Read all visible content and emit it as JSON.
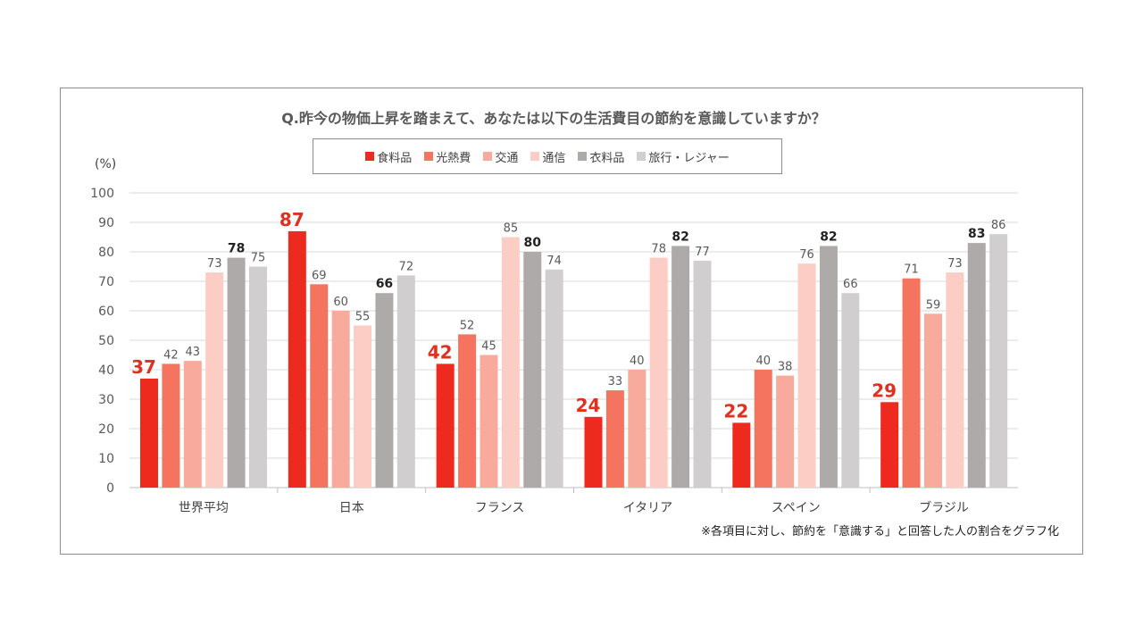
{
  "title": "Q.昨今の物価上昇を踏まえて、あなたは以下の生活費目の節約を意識していますか？",
  "unit": "(%)",
  "footnote": "※各項目に対し、節約を「意識する」と回答した人の割合をグラフ化",
  "chart_data": {
    "type": "bar",
    "title": "Q.昨今の物価上昇を踏まえて、あなたは以下の生活費目の節約を意識していますか？",
    "ylabel": "(%)",
    "ylim": [
      0,
      100
    ],
    "yticks": [
      0,
      10,
      20,
      30,
      40,
      50,
      60,
      70,
      80,
      90,
      100
    ],
    "grid": true,
    "legend_position": "top-center",
    "categories": [
      "世界平均",
      "日本",
      "フランス",
      "イタリア",
      "スペイン",
      "ブラジル"
    ],
    "series": [
      {
        "name": "食料品",
        "color": "#ee2a1e",
        "values": [
          37,
          87,
          42,
          24,
          22,
          29
        ]
      },
      {
        "name": "光熱費",
        "color": "#f5745f",
        "values": [
          42,
          69,
          52,
          33,
          40,
          71
        ]
      },
      {
        "name": "交通",
        "color": "#f8aa9c",
        "values": [
          43,
          60,
          45,
          40,
          38,
          59
        ]
      },
      {
        "name": "通信",
        "color": "#fbcdc5",
        "values": [
          73,
          55,
          85,
          78,
          76,
          73
        ]
      },
      {
        "name": "衣料品",
        "color": "#aeaaaa",
        "values": [
          78,
          66,
          80,
          82,
          82,
          83
        ]
      },
      {
        "name": "旅行・レジャー",
        "color": "#d0cece",
        "values": [
          75,
          72,
          74,
          77,
          66,
          86
        ]
      }
    ]
  }
}
